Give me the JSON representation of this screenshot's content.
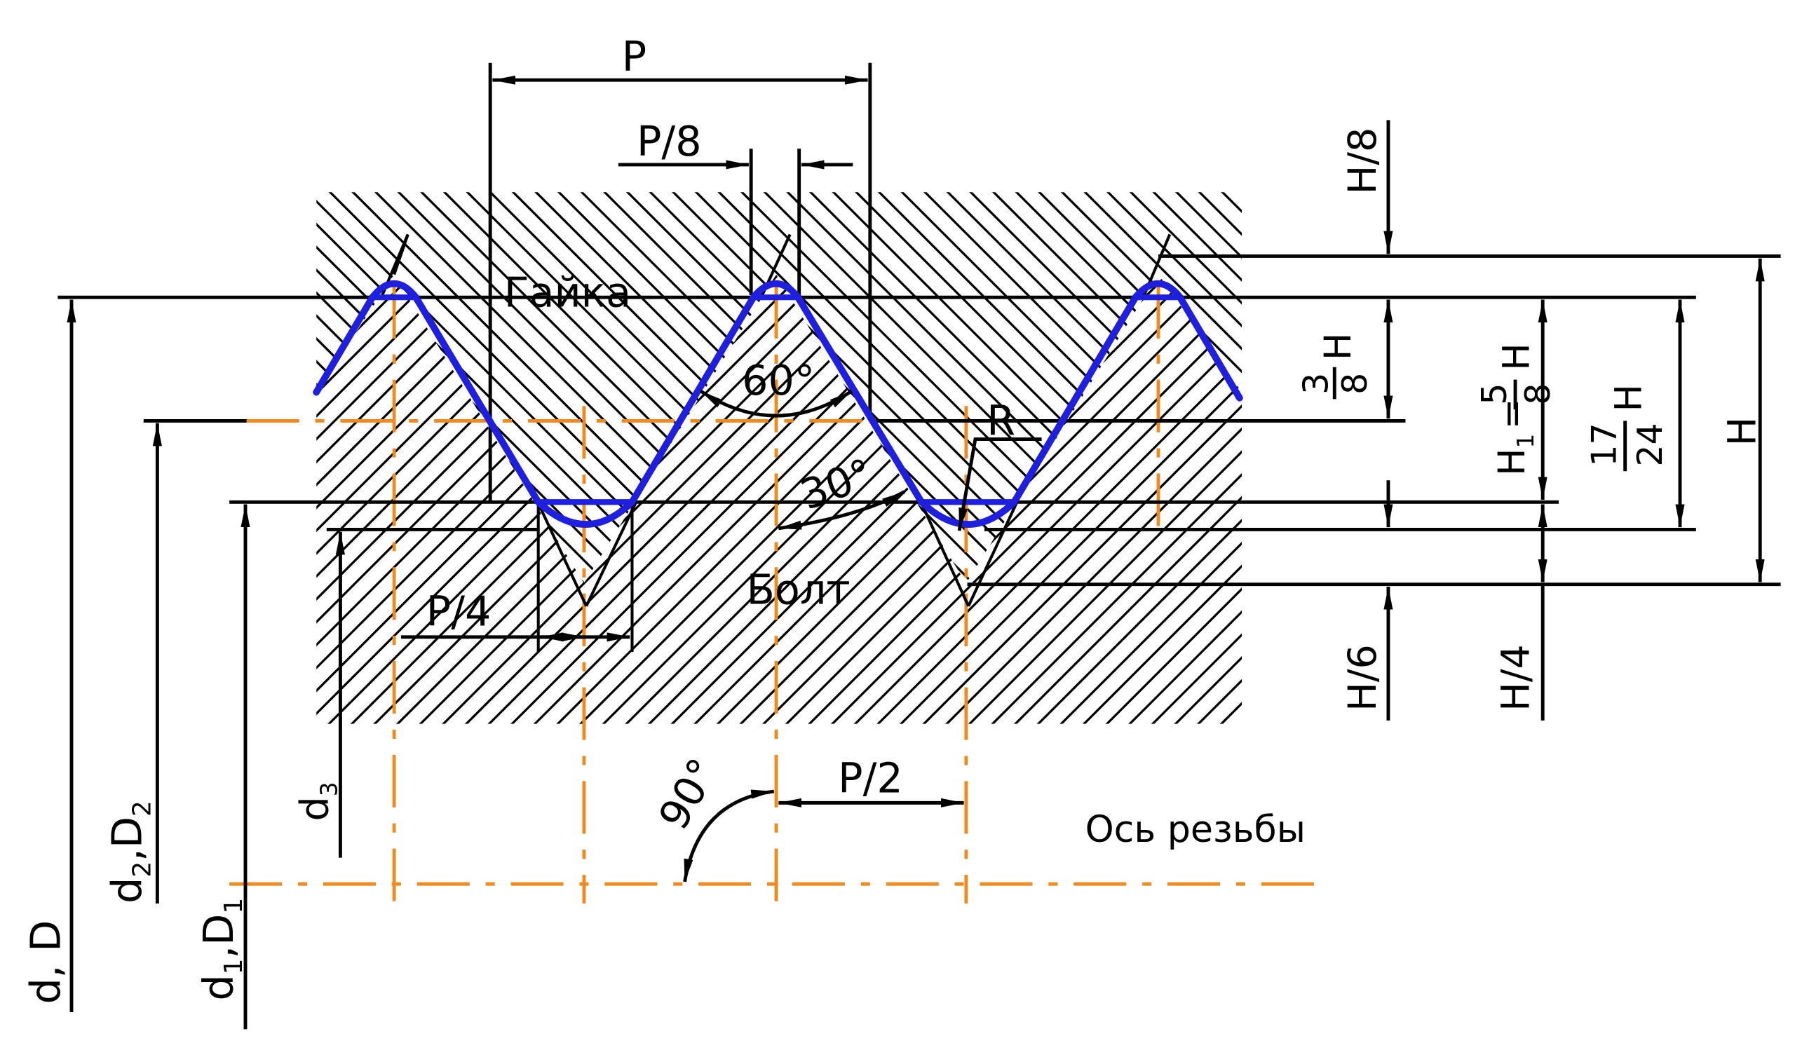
{
  "labels": {
    "pitch": "P",
    "pitch_eighth": "P/8",
    "pitch_quarter": "P/4",
    "pitch_half": "P/2",
    "nut": "Гайка",
    "bolt": "Болт",
    "angle_60": "60°",
    "angle_30": "30°",
    "angle_90": "90°",
    "radius": "R",
    "axis": "Ось резьбы",
    "h_eighth": "H/8",
    "h_sixth": "H/6",
    "h_quarter": "H/4",
    "h_three_eighths_num": "3",
    "h_three_eighths_den": "8",
    "h_three_eighths_sym": "H",
    "h1_sym": "H",
    "h1_sub": "1",
    "h1_eq": "=",
    "h1_num": "5",
    "h1_den": "8",
    "h1_h": "H",
    "h_17_num": "17",
    "h_17_den": "24",
    "h_17_sym": "H",
    "h_total": "H",
    "d_major": "d, D",
    "d_pitch_a": "d",
    "d_pitch_a_sub": "2",
    "d_pitch_b": ",D",
    "d_pitch_b_sub": "2",
    "d_minor_a": "d",
    "d_minor_a_sub": "1",
    "d_minor_b": ",D",
    "d_minor_b_sub": "1",
    "d3": "d",
    "d3_sub": "3"
  },
  "colors": {
    "profile": "#1f1fe0",
    "axis": "#f08a1c",
    "lines": "#000000",
    "background": "#ffffff"
  }
}
